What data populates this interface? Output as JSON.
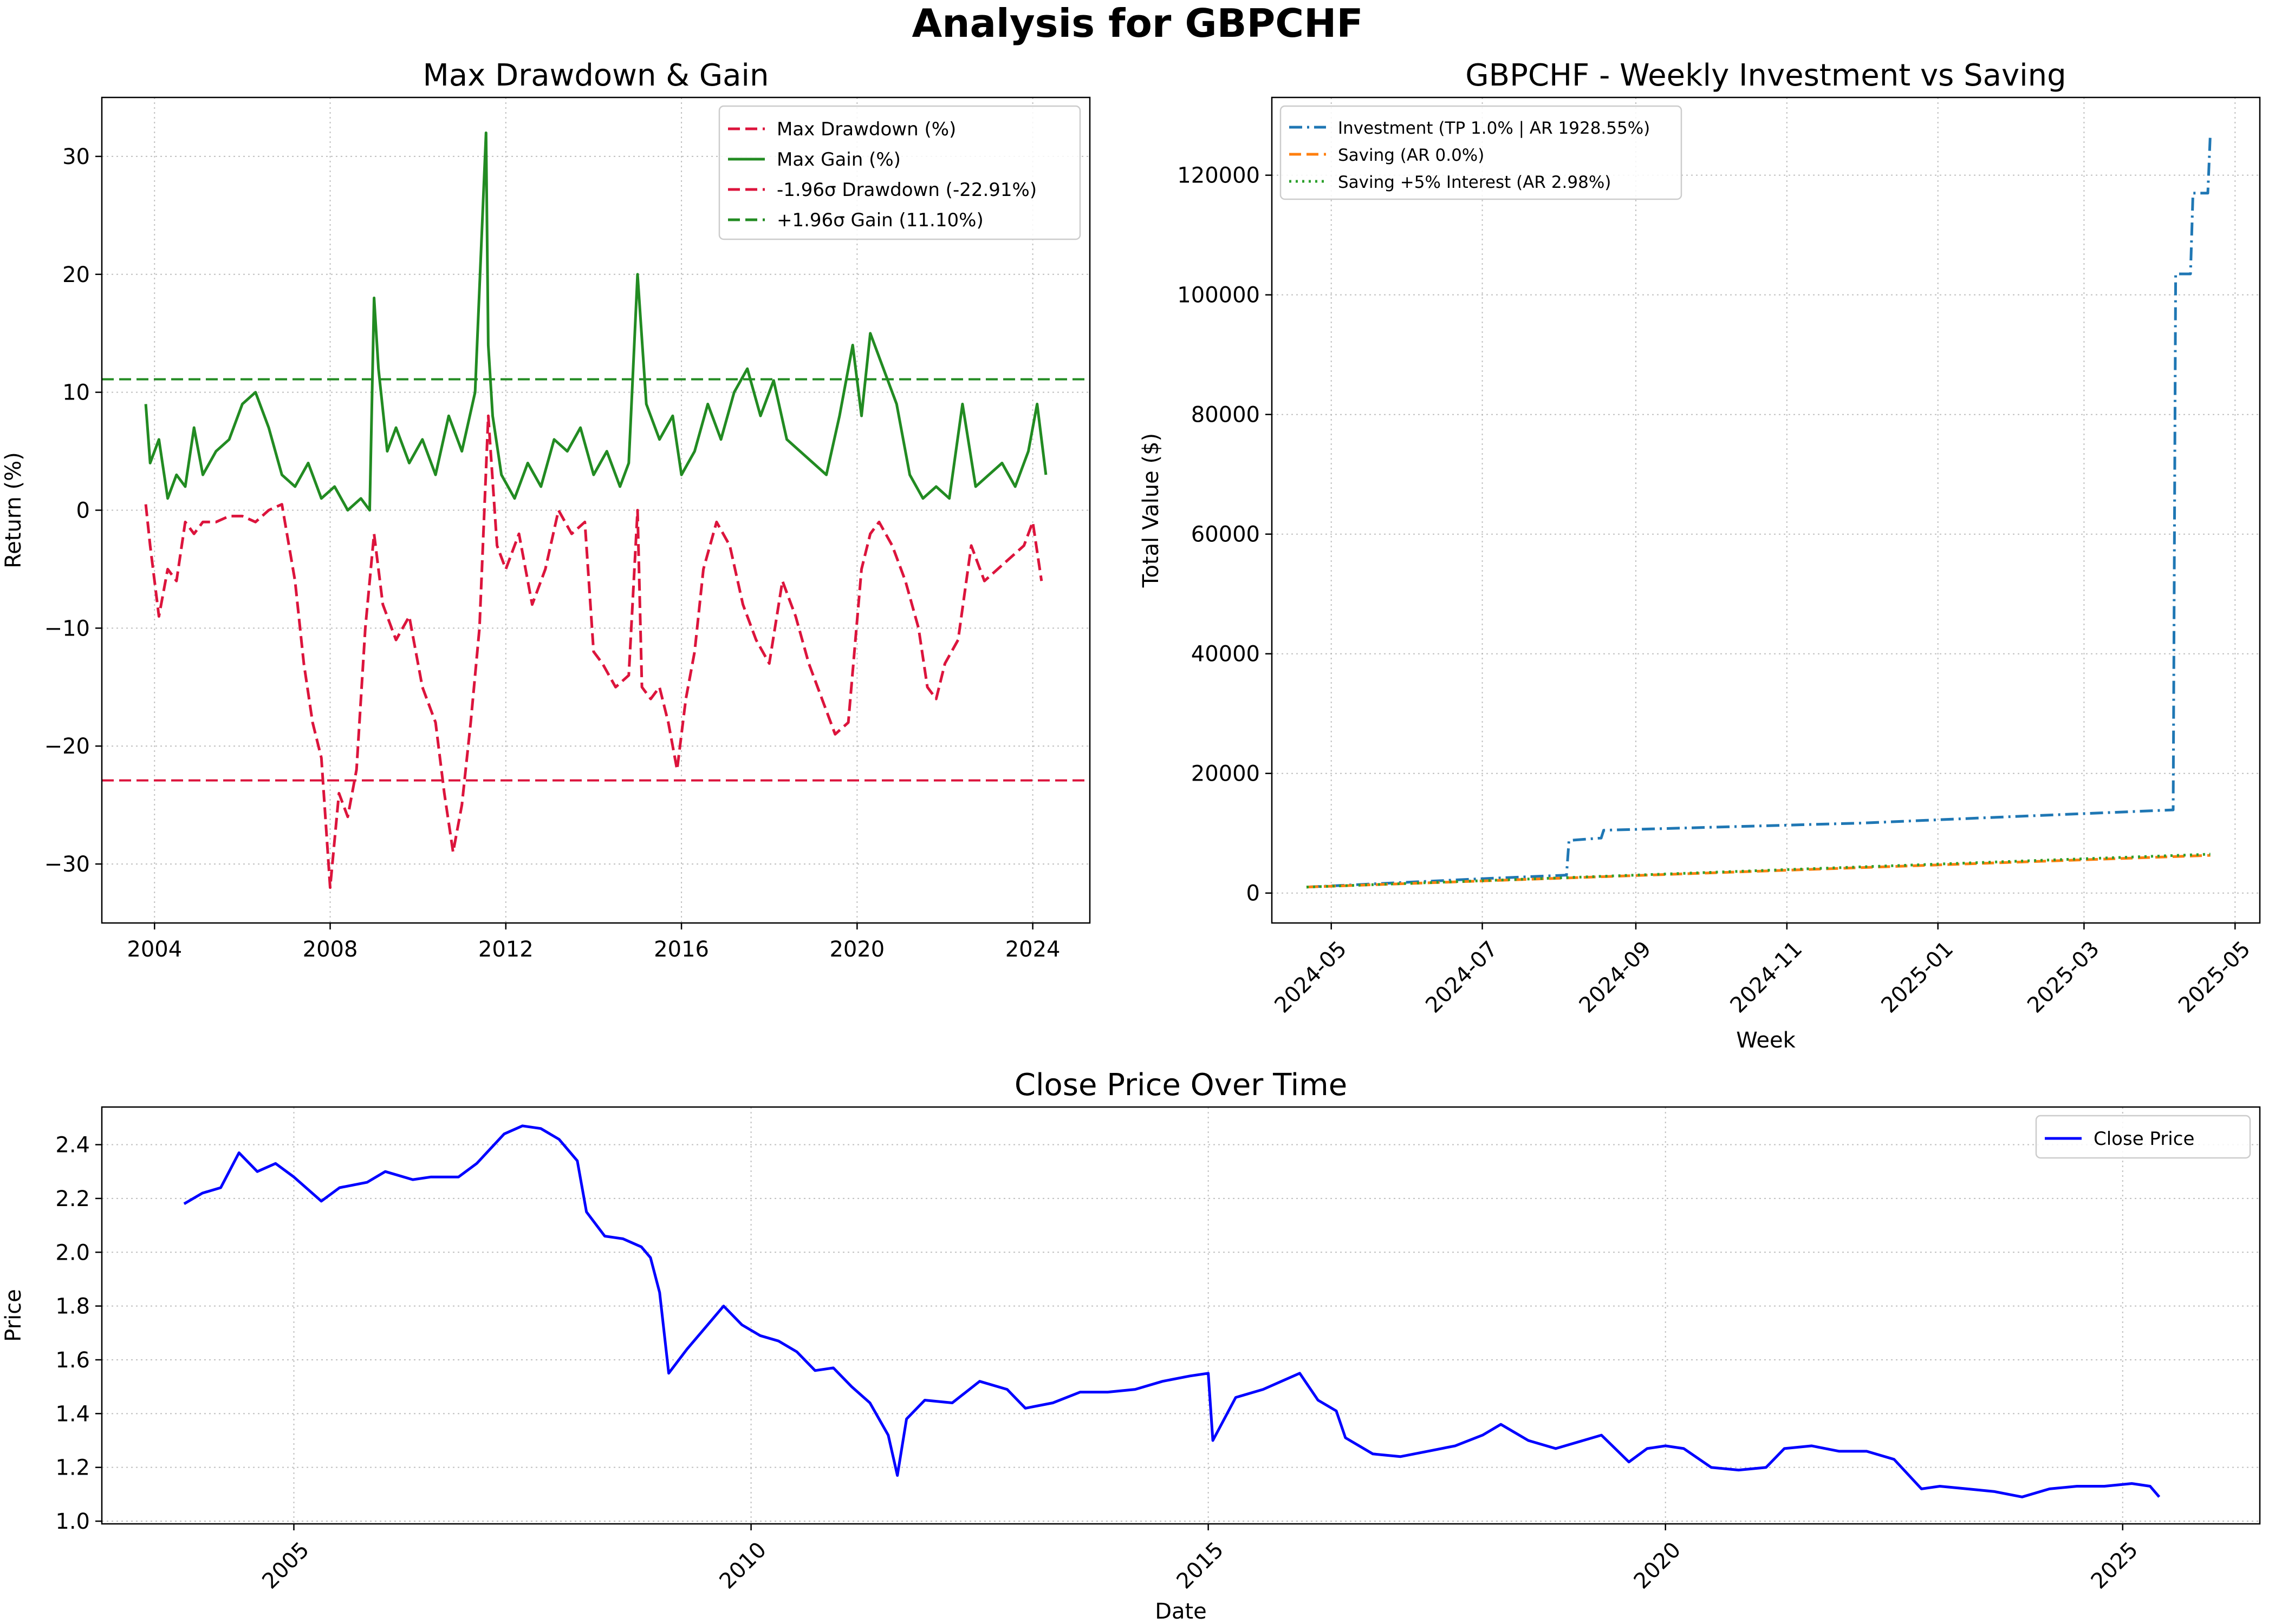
{
  "suptitle": "Analysis for GBPCHF",
  "colors": {
    "drawdown": "#dc143c",
    "gain": "#228b22",
    "investment": "#1f77b4",
    "saving": "#ff7f0e",
    "saving_interest": "#2ca02c",
    "close": "#0000ff"
  },
  "chart_data": [
    {
      "id": "drawdown_gain",
      "type": "line",
      "title": "Max Drawdown & Gain",
      "xlabel": "",
      "ylabel": "Return (%)",
      "xlim": [
        2002.8,
        2025.3
      ],
      "ylim": [
        -35,
        35
      ],
      "x_ticks": [
        2004,
        2008,
        2012,
        2016,
        2020,
        2024
      ],
      "y_ticks": [
        -30,
        -20,
        -10,
        0,
        10,
        20,
        30
      ],
      "y_tick_labels": [
        "−30",
        "−20",
        "−10",
        "0",
        "10",
        "20",
        "30"
      ],
      "grid": true,
      "legend": "upper right",
      "legend_entries": [
        "Max Drawdown (%)",
        "Max Gain (%)",
        "-1.96σ Drawdown (-22.91%)",
        "+1.96σ Gain (11.10%)"
      ],
      "hlines": [
        {
          "name": "-1.96σ Drawdown (-22.91%)",
          "y": -22.91,
          "color": "#dc143c",
          "style": "dashed"
        },
        {
          "name": "+1.96σ Gain (11.10%)",
          "y": 11.1,
          "color": "#228b22",
          "style": "dashed"
        }
      ],
      "series": [
        {
          "name": "Max Drawdown (%)",
          "color": "#dc143c",
          "style": "dashed",
          "x": [
            2003.8,
            2003.9,
            2004.1,
            2004.3,
            2004.5,
            2004.7,
            2004.9,
            2005.1,
            2005.4,
            2005.7,
            2006.0,
            2006.3,
            2006.6,
            2006.9,
            2007.2,
            2007.4,
            2007.6,
            2007.8,
            2008.0,
            2008.2,
            2008.4,
            2008.6,
            2008.8,
            2009.0,
            2009.2,
            2009.5,
            2009.8,
            2010.1,
            2010.4,
            2010.6,
            2010.8,
            2011.0,
            2011.2,
            2011.4,
            2011.6,
            2011.8,
            2012.0,
            2012.3,
            2012.6,
            2012.9,
            2013.2,
            2013.5,
            2013.8,
            2014.0,
            2014.2,
            2014.5,
            2014.8,
            2015.0,
            2015.1,
            2015.3,
            2015.5,
            2015.7,
            2015.9,
            2016.1,
            2016.3,
            2016.5,
            2016.8,
            2017.1,
            2017.4,
            2017.7,
            2018.0,
            2018.3,
            2018.6,
            2018.9,
            2019.2,
            2019.5,
            2019.8,
            2020.1,
            2020.3,
            2020.5,
            2020.8,
            2021.1,
            2021.4,
            2021.6,
            2021.8,
            2022.0,
            2022.3,
            2022.6,
            2022.9,
            2023.2,
            2023.5,
            2023.8,
            2024.0,
            2024.2
          ],
          "y": [
            0.5,
            -3,
            -9,
            -5,
            -6,
            -1,
            -2,
            -1,
            -1,
            -0.5,
            -0.5,
            -1,
            0,
            0.5,
            -6,
            -13,
            -18,
            -21,
            -32,
            -24,
            -26,
            -22,
            -10,
            -2,
            -8,
            -11,
            -9,
            -15,
            -18,
            -24,
            -29,
            -25,
            -18,
            -10,
            8,
            -3,
            -5,
            -2,
            -8,
            -5,
            0,
            -2,
            -1,
            -12,
            -13,
            -15,
            -14,
            0,
            -15,
            -16,
            -15,
            -18,
            -22,
            -16,
            -12,
            -5,
            -1,
            -3,
            -8,
            -11,
            -13,
            -6,
            -9,
            -13,
            -16,
            -19,
            -18,
            -5,
            -2,
            -1,
            -3,
            -6,
            -10,
            -15,
            -16,
            -13,
            -11,
            -3,
            -6,
            -5,
            -4,
            -3,
            -1,
            -6
          ]
        },
        {
          "name": "Max Gain (%)",
          "color": "#228b22",
          "style": "solid",
          "x": [
            2003.8,
            2003.9,
            2004.1,
            2004.3,
            2004.5,
            2004.7,
            2004.9,
            2005.1,
            2005.4,
            2005.7,
            2006.0,
            2006.3,
            2006.6,
            2006.9,
            2007.2,
            2007.5,
            2007.8,
            2008.1,
            2008.4,
            2008.7,
            2008.9,
            2009.0,
            2009.1,
            2009.3,
            2009.5,
            2009.8,
            2010.1,
            2010.4,
            2010.7,
            2011.0,
            2011.3,
            2011.55,
            2011.6,
            2011.7,
            2011.9,
            2012.2,
            2012.5,
            2012.8,
            2013.1,
            2013.4,
            2013.7,
            2014.0,
            2014.3,
            2014.6,
            2014.8,
            2015.0,
            2015.2,
            2015.5,
            2015.8,
            2016.0,
            2016.3,
            2016.6,
            2016.9,
            2017.2,
            2017.5,
            2017.8,
            2018.1,
            2018.4,
            2018.7,
            2019.0,
            2019.3,
            2019.6,
            2019.9,
            2020.1,
            2020.3,
            2020.6,
            2020.9,
            2021.2,
            2021.5,
            2021.8,
            2022.1,
            2022.4,
            2022.7,
            2023.0,
            2023.3,
            2023.6,
            2023.9,
            2024.1,
            2024.3
          ],
          "y": [
            9,
            4,
            6,
            1,
            3,
            2,
            7,
            3,
            5,
            6,
            9,
            10,
            7,
            3,
            2,
            4,
            1,
            2,
            0,
            1,
            0,
            18,
            12,
            5,
            7,
            4,
            6,
            3,
            8,
            5,
            10,
            32,
            14,
            8,
            3,
            1,
            4,
            2,
            6,
            5,
            7,
            3,
            5,
            2,
            4,
            20,
            9,
            6,
            8,
            3,
            5,
            9,
            6,
            10,
            12,
            8,
            11,
            6,
            5,
            4,
            3,
            8,
            14,
            8,
            15,
            12,
            9,
            3,
            1,
            2,
            1,
            9,
            2,
            3,
            4,
            2,
            5,
            9,
            3
          ]
        }
      ]
    },
    {
      "id": "weekly_investment",
      "type": "line",
      "title": "GBPCHF - Weekly Investment vs Saving",
      "xlabel": "Week",
      "ylabel": "Total Value ($)",
      "x_unit": "date",
      "xlim": [
        "2024-04-07",
        "2025-05-11"
      ],
      "ylim": [
        -5000,
        133000
      ],
      "x_ticks": [
        "2024-05-01",
        "2024-07-01",
        "2024-09-01",
        "2024-11-01",
        "2025-01-01",
        "2025-03-01",
        "2025-05-01"
      ],
      "x_tick_labels": [
        "2024-05",
        "2024-07",
        "2024-09",
        "2024-11",
        "2025-01",
        "2025-03",
        "2025-05"
      ],
      "y_ticks": [
        0,
        20000,
        40000,
        60000,
        80000,
        100000,
        120000
      ],
      "grid": true,
      "legend": "upper left",
      "legend_entries": [
        "Investment (TP 1.0% | AR 1928.55%)",
        "Saving (AR 0.0%)",
        "Saving +5% Interest (AR 2.98%)"
      ],
      "series": [
        {
          "name": "Investment (TP 1.0% | AR 1928.55%)",
          "color": "#1f77b4",
          "style": "dashdot",
          "x": [
            "2024-04-21",
            "2024-07-01",
            "2024-08-04",
            "2024-08-05",
            "2024-08-18",
            "2024-08-19",
            "2024-12-01",
            "2025-02-01",
            "2025-04-06",
            "2025-04-07",
            "2025-04-13",
            "2025-04-14",
            "2025-04-20",
            "2025-04-21"
          ],
          "y": [
            1000,
            2400,
            3000,
            8800,
            9200,
            10500,
            11700,
            12800,
            13900,
            103500,
            103500,
            117000,
            117000,
            127000
          ]
        },
        {
          "name": "Saving (AR 0.0%)",
          "color": "#ff7f0e",
          "style": "dashed",
          "x": [
            "2024-04-21",
            "2025-04-21"
          ],
          "y": [
            1000,
            6300
          ]
        },
        {
          "name": "Saving +5% Interest (AR 2.98%)",
          "color": "#2ca02c",
          "style": "dotted",
          "x": [
            "2024-04-21",
            "2025-04-21"
          ],
          "y": [
            1000,
            6500
          ]
        }
      ]
    },
    {
      "id": "close_price",
      "type": "line",
      "title": "Close Price Over Time",
      "xlabel": "Date",
      "ylabel": "Price",
      "xlim": [
        2002.9,
        2026.5
      ],
      "ylim": [
        0.99,
        2.54
      ],
      "x_ticks": [
        2005,
        2010,
        2015,
        2020,
        2025
      ],
      "y_ticks": [
        1.0,
        1.2,
        1.4,
        1.6,
        1.8,
        2.0,
        2.2,
        2.4
      ],
      "y_tick_labels": [
        "1.0",
        "1.2",
        "1.4",
        "1.6",
        "1.8",
        "2.0",
        "2.2",
        "2.4"
      ],
      "grid": true,
      "legend": "upper right",
      "legend_entries": [
        "Close Price"
      ],
      "series": [
        {
          "name": "Close Price",
          "color": "#0000ff",
          "style": "solid",
          "x": [
            2003.8,
            2004.0,
            2004.2,
            2004.4,
            2004.6,
            2004.8,
            2005.0,
            2005.3,
            2005.5,
            2005.8,
            2006.0,
            2006.3,
            2006.5,
            2006.8,
            2007.0,
            2007.3,
            2007.5,
            2007.7,
            2007.9,
            2008.1,
            2008.2,
            2008.4,
            2008.6,
            2008.8,
            2008.9,
            2009.0,
            2009.1,
            2009.3,
            2009.5,
            2009.7,
            2009.9,
            2010.1,
            2010.3,
            2010.5,
            2010.7,
            2010.9,
            2011.1,
            2011.3,
            2011.5,
            2011.6,
            2011.7,
            2011.9,
            2012.2,
            2012.5,
            2012.8,
            2013.0,
            2013.3,
            2013.6,
            2013.9,
            2014.2,
            2014.5,
            2014.8,
            2015.0,
            2015.05,
            2015.3,
            2015.6,
            2015.8,
            2016.0,
            2016.2,
            2016.4,
            2016.5,
            2016.8,
            2017.1,
            2017.4,
            2017.7,
            2018.0,
            2018.2,
            2018.5,
            2018.8,
            2019.1,
            2019.3,
            2019.6,
            2019.8,
            2020.0,
            2020.2,
            2020.5,
            2020.8,
            2021.1,
            2021.3,
            2021.6,
            2021.9,
            2022.2,
            2022.5,
            2022.8,
            2023.0,
            2023.3,
            2023.6,
            2023.9,
            2024.2,
            2024.5,
            2024.8,
            2025.1,
            2025.3,
            2025.4
          ],
          "y": [
            2.18,
            2.22,
            2.24,
            2.37,
            2.3,
            2.33,
            2.28,
            2.19,
            2.24,
            2.26,
            2.3,
            2.27,
            2.28,
            2.28,
            2.33,
            2.44,
            2.47,
            2.46,
            2.42,
            2.34,
            2.15,
            2.06,
            2.05,
            2.02,
            1.98,
            1.85,
            1.55,
            1.64,
            1.72,
            1.8,
            1.73,
            1.69,
            1.67,
            1.63,
            1.56,
            1.57,
            1.5,
            1.44,
            1.32,
            1.17,
            1.38,
            1.45,
            1.44,
            1.52,
            1.49,
            1.42,
            1.44,
            1.48,
            1.48,
            1.49,
            1.52,
            1.54,
            1.55,
            1.3,
            1.46,
            1.49,
            1.52,
            1.55,
            1.45,
            1.41,
            1.31,
            1.25,
            1.24,
            1.26,
            1.28,
            1.32,
            1.36,
            1.3,
            1.27,
            1.3,
            1.32,
            1.22,
            1.27,
            1.28,
            1.27,
            1.2,
            1.19,
            1.2,
            1.27,
            1.28,
            1.26,
            1.26,
            1.23,
            1.12,
            1.13,
            1.12,
            1.11,
            1.09,
            1.12,
            1.13,
            1.13,
            1.14,
            1.13,
            1.09
          ]
        }
      ]
    }
  ]
}
